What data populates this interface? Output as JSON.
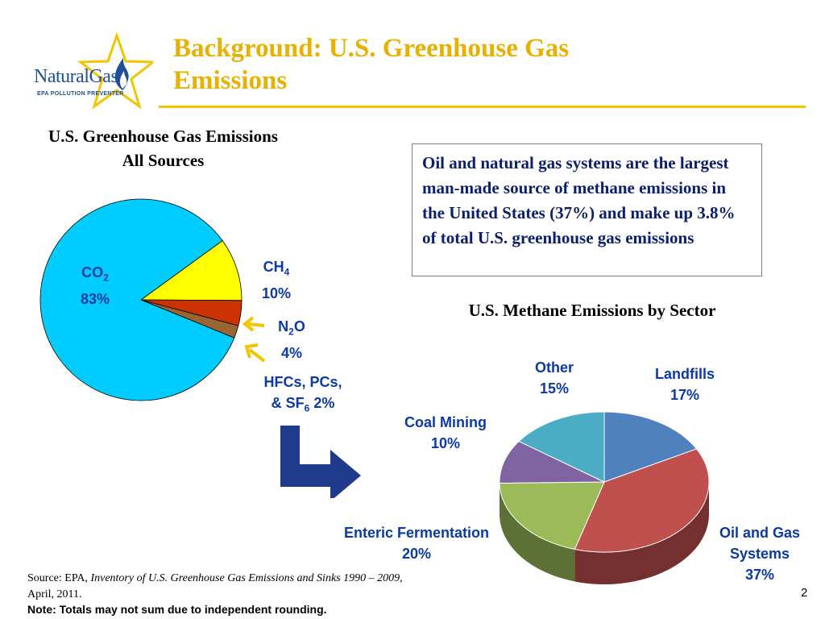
{
  "slide": {
    "title_line1": "Background: U.S. Greenhouse Gas",
    "title_line2": "Emissions",
    "page_number": "2",
    "logo": {
      "name": "NaturalGas",
      "tagline": "EPA POLLUTION PREVENTER"
    }
  },
  "callout": {
    "text": "Oil and natural gas systems are the largest man-made source of methane emissions in the United States (37%) and make up 3.8% of total U.S. greenhouse gas emissions"
  },
  "source": {
    "prefix": "Source: EPA, ",
    "italic": "Inventory of U.S. Greenhouse Gas Emissions and Sinks 1990 – 2009",
    "suffix": ", April, 2011.",
    "note": "Note:  Totals may not sum due to independent rounding."
  },
  "chart_data": [
    {
      "type": "pie",
      "title_line1": "U.S. Greenhouse Gas Emissions",
      "title_line2": "All Sources",
      "slices": [
        {
          "name": "CO2",
          "value": 83,
          "value_label": "83%",
          "color": "#00CCFF"
        },
        {
          "name": "CH4",
          "value": 10,
          "value_label": "10%",
          "color": "#FFFF00"
        },
        {
          "name": "N2O",
          "value": 4,
          "value_label": "4%",
          "color": "#CC3300"
        },
        {
          "name": "HFCs, PCs, & SF6",
          "value": 2,
          "value_label": "2%",
          "color": "#996633"
        }
      ]
    },
    {
      "type": "pie",
      "title": "U.S. Methane Emissions by Sector",
      "slices": [
        {
          "name": "Landfills",
          "value": 17,
          "value_label": "17%",
          "color": "#4F81BD"
        },
        {
          "name": "Oil and Gas Systems",
          "value": 37,
          "value_label": "37%",
          "color": "#C0504D"
        },
        {
          "name": "Enteric Fermentation",
          "value": 20,
          "value_label": "20%",
          "color": "#9BBB59"
        },
        {
          "name": "Coal Mining",
          "value": 10,
          "value_label": "10%",
          "color": "#8064A2"
        },
        {
          "name": "Other",
          "value": 15,
          "value_label": "15%",
          "color": "#4BACC6"
        }
      ]
    }
  ],
  "colors": {
    "title": "#E8B000",
    "label": "#0b3aa0",
    "arrow": "#1F3A8A",
    "pointer": "#F2C500"
  }
}
